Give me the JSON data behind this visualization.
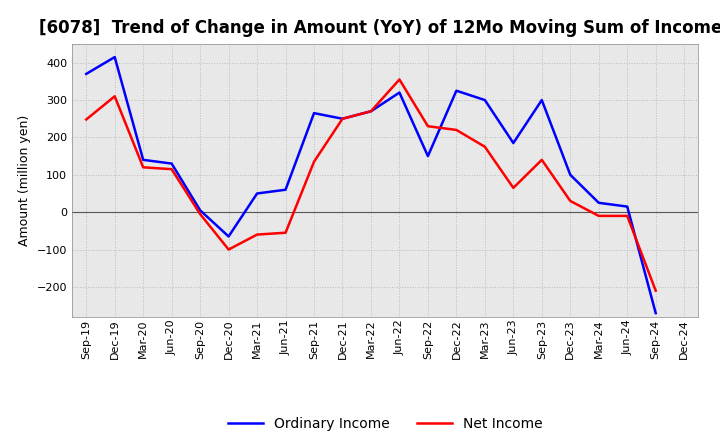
{
  "title": "[6078]  Trend of Change in Amount (YoY) of 12Mo Moving Sum of Incomes",
  "ylabel": "Amount (million yen)",
  "x_labels": [
    "Sep-19",
    "Dec-19",
    "Mar-20",
    "Jun-20",
    "Sep-20",
    "Dec-20",
    "Mar-21",
    "Jun-21",
    "Sep-21",
    "Dec-21",
    "Mar-22",
    "Jun-22",
    "Sep-22",
    "Dec-22",
    "Mar-23",
    "Jun-23",
    "Sep-23",
    "Dec-23",
    "Mar-24",
    "Jun-24",
    "Sep-24",
    "Dec-24"
  ],
  "ordinary_income": [
    370,
    415,
    140,
    130,
    5,
    -65,
    50,
    60,
    265,
    250,
    270,
    320,
    150,
    325,
    300,
    185,
    300,
    100,
    25,
    15,
    -270,
    null
  ],
  "net_income": [
    248,
    310,
    120,
    115,
    -5,
    -100,
    -60,
    -55,
    135,
    250,
    270,
    355,
    230,
    220,
    175,
    65,
    140,
    30,
    -10,
    -10,
    -210,
    null
  ],
  "ordinary_income_color": "#0000ff",
  "net_income_color": "#ff0000",
  "ylim": [
    -280,
    450
  ],
  "yticks": [
    -200,
    -100,
    0,
    100,
    200,
    300,
    400
  ],
  "background_color": "#ffffff",
  "plot_bg_color": "#e8e8e8",
  "grid_color": "#bbbbbb",
  "legend_labels": [
    "Ordinary Income",
    "Net Income"
  ],
  "title_fontsize": 12,
  "label_fontsize": 9,
  "tick_fontsize": 8,
  "line_width": 1.8
}
